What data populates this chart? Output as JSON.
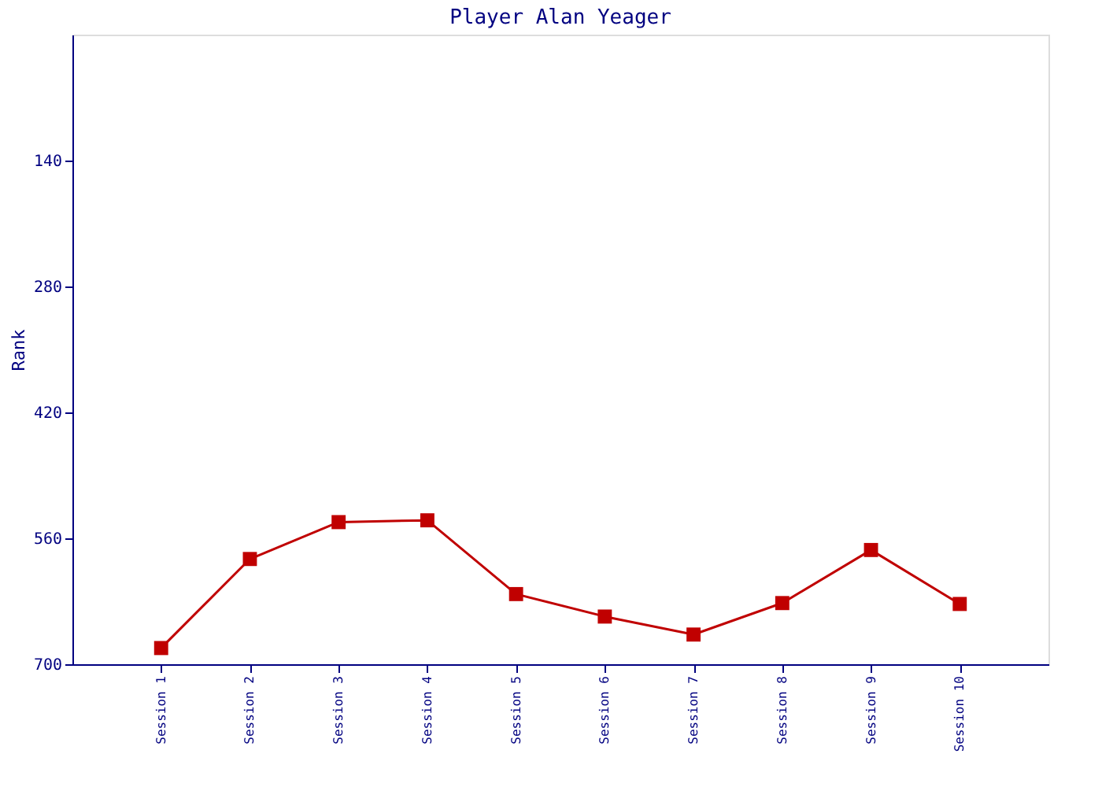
{
  "chart_data": {
    "type": "line",
    "title": "Player Alan Yeager",
    "ylabel": "Rank",
    "categories": [
      "Session 1",
      "Session 2",
      "Session 3",
      "Session 4",
      "Session 5",
      "Session 6",
      "Session 7",
      "Session 8",
      "Session 9",
      "Session 10"
    ],
    "series": [
      {
        "color": "#c00000",
        "values": [
          682,
          583,
          542,
          540,
          622,
          647,
          667,
          632,
          573,
          633
        ]
      }
    ],
    "ylim": [
      700,
      0
    ],
    "yticks": [
      140,
      280,
      420,
      560,
      700
    ],
    "grid": false,
    "legend": false,
    "marker": "square",
    "line_style": "solid"
  }
}
